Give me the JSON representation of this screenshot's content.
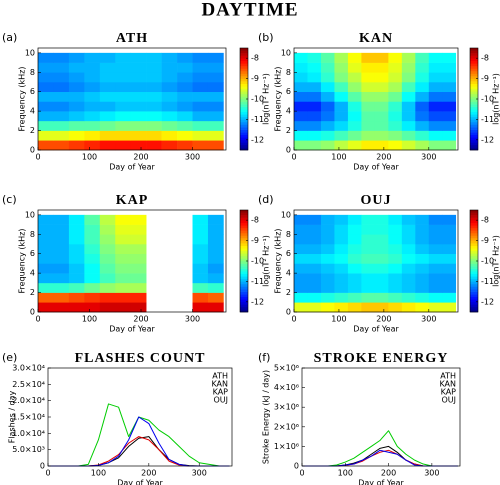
{
  "title": "DAYTIME",
  "chart_data": [
    {
      "type": "heatmap",
      "panel_label": "(a)",
      "title": "ATH",
      "xlabel": "Day of Year",
      "ylabel": "Frequency (kHz)",
      "colorbar_label": "log(nT² Hz⁻¹)",
      "x": [
        15,
        45,
        75,
        105,
        135,
        165,
        195,
        225,
        255,
        285,
        315,
        345
      ],
      "y": [
        0.5,
        1.5,
        2.5,
        3.5,
        4.5,
        5.5,
        6.5,
        7.5,
        8.5,
        9.5
      ],
      "z": [
        [
          -8.5,
          -8.5,
          -8.4,
          -8.3,
          -8.2,
          -8.2,
          -8.2,
          -8.2,
          -8.3,
          -8.4,
          -8.5,
          -8.5
        ],
        [
          -9.5,
          -9.5,
          -9.4,
          -9.3,
          -9.2,
          -9.2,
          -9.2,
          -9.2,
          -9.3,
          -9.4,
          -9.5,
          -9.5
        ],
        [
          -10.3,
          -10.3,
          -10.2,
          -10.2,
          -10.1,
          -10,
          -10,
          -10,
          -10.1,
          -10.2,
          -10.3,
          -10.3
        ],
        [
          -11,
          -11,
          -10.9,
          -10.8,
          -10.7,
          -10.6,
          -10.6,
          -10.6,
          -10.7,
          -10.8,
          -11,
          -11
        ],
        [
          -11.2,
          -11.2,
          -11.1,
          -11,
          -11,
          -10.9,
          -10.9,
          -10.9,
          -11,
          -11.1,
          -11.2,
          -11.2
        ],
        [
          -11,
          -11,
          -11,
          -10.9,
          -10.8,
          -10.8,
          -10.8,
          -10.8,
          -10.9,
          -11,
          -11,
          -11
        ],
        [
          -11.3,
          -11.3,
          -11.2,
          -11.1,
          -11,
          -11,
          -11,
          -11,
          -11.1,
          -11.2,
          -11.3,
          -11.3
        ],
        [
          -11.2,
          -11.2,
          -11.1,
          -11,
          -10.9,
          -10.9,
          -10.9,
          -10.9,
          -11,
          -11.1,
          -11.2,
          -11.2
        ],
        [
          -11.1,
          -11.1,
          -11,
          -11,
          -10.9,
          -10.9,
          -10.9,
          -10.9,
          -11,
          -11,
          -11.1,
          -11.1
        ],
        [
          -11.2,
          -11.2,
          -11.1,
          -11,
          -11,
          -10.9,
          -10.9,
          -10.9,
          -11,
          -11.1,
          -11.2,
          -11.2
        ]
      ],
      "xlim": [
        0,
        365
      ],
      "ylim": [
        0,
        10.5
      ],
      "xticks": [
        0,
        100,
        200,
        300
      ],
      "yticks": [
        0,
        2,
        4,
        6,
        8,
        10
      ],
      "clim": [
        -12.5,
        -7.5
      ],
      "cticks": [
        -8,
        -9,
        -10,
        -11,
        -12
      ]
    },
    {
      "type": "heatmap",
      "panel_label": "(b)",
      "title": "KAN",
      "xlabel": "Day of Year",
      "ylabel": "Frequency (kHz)",
      "colorbar_label": "log(nT² Hz⁻¹)",
      "x": [
        15,
        45,
        75,
        105,
        135,
        165,
        195,
        225,
        255,
        285,
        315,
        345
      ],
      "y": [
        0.5,
        1.5,
        2.5,
        3.5,
        4.5,
        5.5,
        6.5,
        7.5,
        8.5,
        9.5
      ],
      "z": [
        [
          -10,
          -10,
          -9.9,
          -9.7,
          -9.5,
          -9.3,
          -9.3,
          -9.4,
          -9.6,
          -9.8,
          -10,
          -10
        ],
        [
          -10.6,
          -10.6,
          -10.5,
          -10.3,
          -10.1,
          -9.9,
          -9.9,
          -10,
          -10.2,
          -10.4,
          -10.6,
          -10.6
        ],
        [
          -11.2,
          -11.2,
          -11,
          -10.8,
          -10.5,
          -10.2,
          -10.2,
          -10.4,
          -10.7,
          -11,
          -11.2,
          -11.2
        ],
        [
          -11.5,
          -11.5,
          -11.3,
          -11,
          -10.6,
          -10.2,
          -10.2,
          -10.5,
          -10.9,
          -11.3,
          -11.5,
          -11.5
        ],
        [
          -11.7,
          -11.7,
          -11.4,
          -11,
          -10.5,
          -10.1,
          -10.1,
          -10.4,
          -10.9,
          -11.4,
          -11.7,
          -11.7
        ],
        [
          -11.3,
          -11.3,
          -11,
          -10.6,
          -10.2,
          -9.9,
          -9.9,
          -10.1,
          -10.6,
          -11,
          -11.3,
          -11.3
        ],
        [
          -11,
          -11,
          -10.7,
          -10.3,
          -9.9,
          -9.6,
          -9.6,
          -9.8,
          -10.3,
          -10.7,
          -11,
          -11
        ],
        [
          -10.8,
          -10.7,
          -10.4,
          -10,
          -9.7,
          -9.4,
          -9.4,
          -9.6,
          -10,
          -10.5,
          -10.8,
          -10.8
        ],
        [
          -10.7,
          -10.6,
          -10.3,
          -9.9,
          -9.5,
          -9.3,
          -9.3,
          -9.5,
          -9.9,
          -10.4,
          -10.7,
          -10.7
        ],
        [
          -10.6,
          -10.5,
          -10.2,
          -9.8,
          -9.4,
          -9.1,
          -9.1,
          -9.4,
          -9.8,
          -10.3,
          -10.6,
          -10.6
        ]
      ],
      "xlim": [
        0,
        365
      ],
      "ylim": [
        0,
        10.5
      ],
      "xticks": [
        0,
        100,
        200,
        300
      ],
      "yticks": [
        0,
        2,
        4,
        6,
        8,
        10
      ],
      "clim": [
        -12.5,
        -7.5
      ],
      "cticks": [
        -8,
        -9,
        -10,
        -11,
        -12
      ]
    },
    {
      "type": "heatmap",
      "panel_label": "(c)",
      "title": "KAP",
      "xlabel": "Day of Year",
      "ylabel": "Frequency (kHz)",
      "colorbar_label": "log(nT² Hz⁻¹)",
      "x": [
        15,
        45,
        75,
        105,
        135,
        165,
        195,
        225,
        255,
        285,
        315,
        345
      ],
      "y": [
        0.5,
        1.5,
        2.5,
        3.5,
        4.5,
        5.5,
        6.5,
        7.5,
        8.5,
        9.5
      ],
      "z": [
        [
          -8,
          -8,
          -8,
          -8,
          -7.9,
          -7.9,
          -7.9,
          null,
          null,
          null,
          -8,
          -8
        ],
        [
          -8.6,
          -8.6,
          -8.5,
          -8.4,
          -8.3,
          -8.3,
          -8.3,
          null,
          null,
          null,
          -8.5,
          -8.6
        ],
        [
          -10.4,
          -10.4,
          -10.3,
          -10.1,
          -9.9,
          -9.8,
          -9.8,
          null,
          null,
          null,
          -10.3,
          -10.4
        ],
        [
          -11,
          -11,
          -10.9,
          -10.6,
          -10.3,
          -10.1,
          -10.1,
          null,
          null,
          null,
          -10.9,
          -11
        ],
        [
          -11.1,
          -11.1,
          -10.9,
          -10.6,
          -10.2,
          -10,
          -10,
          null,
          null,
          null,
          -10.9,
          -11.1
        ],
        [
          -11,
          -11,
          -10.8,
          -10.5,
          -10.1,
          -9.9,
          -9.9,
          null,
          null,
          null,
          -10.8,
          -11
        ],
        [
          -11,
          -11,
          -10.8,
          -10.4,
          -10,
          -9.8,
          -9.8,
          null,
          null,
          null,
          -10.8,
          -11
        ],
        [
          -11,
          -11,
          -10.7,
          -10.3,
          -9.9,
          -9.6,
          -9.6,
          null,
          null,
          null,
          -10.7,
          -11
        ],
        [
          -11,
          -11,
          -10.7,
          -10.3,
          -9.8,
          -9.5,
          -9.5,
          null,
          null,
          null,
          -10.7,
          -11
        ],
        [
          -11,
          -11,
          -10.7,
          -10.2,
          -9.7,
          -9.4,
          -9.4,
          null,
          null,
          null,
          -10.7,
          -11
        ]
      ],
      "xlim": [
        0,
        365
      ],
      "ylim": [
        0,
        10.5
      ],
      "xticks": [
        0,
        100,
        200,
        300
      ],
      "yticks": [
        0,
        2,
        4,
        6,
        8,
        10
      ],
      "clim": [
        -12.5,
        -7.5
      ],
      "cticks": [
        -8,
        -9,
        -10,
        -11,
        -12
      ]
    },
    {
      "type": "heatmap",
      "panel_label": "(d)",
      "title": "OUJ",
      "xlabel": "Day of Year",
      "ylabel": "Frequency (kHz)",
      "colorbar_label": "log(nT² Hz⁻¹)",
      "x": [
        15,
        45,
        75,
        105,
        135,
        165,
        195,
        225,
        255,
        285,
        315,
        345
      ],
      "y": [
        0.5,
        1.5,
        2.5,
        3.5,
        4.5,
        5.5,
        6.5,
        7.5,
        8.5,
        9.5
      ],
      "z": [
        [
          -9.5,
          -9.5,
          -9.4,
          -9.3,
          -9.2,
          -9.1,
          -9.1,
          -9.2,
          -9.3,
          -9.4,
          -9.5,
          -9.5
        ],
        [
          -10.6,
          -10.6,
          -10.5,
          -10.4,
          -10.3,
          -10.2,
          -10.2,
          -10.3,
          -10.4,
          -10.5,
          -10.6,
          -10.6
        ],
        [
          -11.1,
          -11.1,
          -11,
          -10.9,
          -10.8,
          -10.7,
          -10.7,
          -10.8,
          -10.9,
          -11,
          -11.1,
          -11.1
        ],
        [
          -11.1,
          -11.1,
          -11,
          -10.9,
          -10.8,
          -10.7,
          -10.7,
          -10.8,
          -10.9,
          -11,
          -11.1,
          -11.1
        ],
        [
          -11,
          -11,
          -10.9,
          -10.8,
          -10.6,
          -10.5,
          -10.5,
          -10.6,
          -10.8,
          -10.9,
          -11,
          -11
        ],
        [
          -10.8,
          -10.8,
          -10.7,
          -10.6,
          -10.4,
          -10.3,
          -10.3,
          -10.4,
          -10.6,
          -10.7,
          -10.8,
          -10.8
        ],
        [
          -11,
          -11,
          -10.9,
          -10.7,
          -10.5,
          -10.4,
          -10.4,
          -10.5,
          -10.7,
          -10.9,
          -11,
          -11
        ],
        [
          -11.1,
          -11.1,
          -11,
          -10.8,
          -10.6,
          -10.4,
          -10.4,
          -10.6,
          -10.8,
          -11,
          -11.1,
          -11.1
        ],
        [
          -11.1,
          -11.1,
          -11,
          -10.8,
          -10.6,
          -10.5,
          -10.5,
          -10.6,
          -10.8,
          -11,
          -11.1,
          -11.1
        ],
        [
          -11.2,
          -11.2,
          -11,
          -10.9,
          -10.7,
          -10.5,
          -10.5,
          -10.7,
          -10.9,
          -11,
          -11.2,
          -11.2
        ]
      ],
      "xlim": [
        0,
        365
      ],
      "ylim": [
        0,
        10.5
      ],
      "xticks": [
        0,
        100,
        200,
        300
      ],
      "yticks": [
        0,
        2,
        4,
        6,
        8,
        10
      ],
      "clim": [
        -12.5,
        -7.5
      ],
      "cticks": [
        -8,
        -9,
        -10,
        -11,
        -12
      ]
    },
    {
      "type": "line",
      "panel_label": "(e)",
      "title": "FLASHES COUNT",
      "xlabel": "Day of Year",
      "ylabel": "Flashes / day",
      "legend": "upper right",
      "x": [
        0,
        20,
        40,
        60,
        80,
        100,
        120,
        140,
        160,
        180,
        200,
        220,
        240,
        260,
        280,
        300,
        320,
        340,
        360
      ],
      "series": [
        {
          "name": "ATH",
          "color": "#000000",
          "values": [
            0,
            0,
            0,
            0,
            0,
            200,
            1000,
            2500,
            6000,
            8500,
            9000,
            5000,
            2000,
            500,
            100,
            0,
            0,
            0,
            0
          ]
        },
        {
          "name": "KAN",
          "color": "#e00000",
          "values": [
            0,
            0,
            0,
            0,
            0,
            300,
            1500,
            3500,
            7000,
            9000,
            8000,
            5000,
            1500,
            300,
            0,
            0,
            0,
            0,
            0
          ]
        },
        {
          "name": "KAP",
          "color": "#00cc00",
          "values": [
            0,
            0,
            0,
            0,
            500,
            8000,
            19000,
            18000,
            9000,
            15000,
            14000,
            11000,
            9000,
            6000,
            3000,
            1000,
            500,
            0,
            0
          ]
        },
        {
          "name": "OUJ",
          "color": "#0000ee",
          "values": [
            0,
            0,
            0,
            0,
            0,
            200,
            1000,
            3000,
            8000,
            15000,
            13000,
            7000,
            2000,
            500,
            0,
            0,
            0,
            0,
            0
          ]
        }
      ],
      "xlim": [
        0,
        365
      ],
      "ylim": [
        0,
        30000
      ],
      "xticks": [
        0,
        100,
        200,
        300
      ],
      "yticks": [
        0,
        {
          "value": 5000,
          "label": "5.0×10³"
        },
        {
          "value": 10000,
          "label": "1.0×10⁴"
        },
        {
          "value": 15000,
          "label": "1.5×10⁴"
        },
        {
          "value": 20000,
          "label": "2.0×10⁴"
        },
        {
          "value": 25000,
          "label": "2.5×10⁴"
        },
        {
          "value": 30000,
          "label": "3.0×10⁴"
        }
      ]
    },
    {
      "type": "line",
      "panel_label": "(f)",
      "title": "STROKE ENERGY",
      "xlabel": "Day of Year",
      "ylabel": "Stroke Energy (kJ / day)",
      "legend": "upper right",
      "x": [
        0,
        20,
        40,
        60,
        80,
        100,
        120,
        140,
        160,
        180,
        200,
        220,
        240,
        260,
        280,
        300,
        320,
        340,
        360
      ],
      "series": [
        {
          "name": "ATH",
          "color": "#000000",
          "values": [
            0,
            0,
            0,
            0,
            0,
            50000,
            150000,
            300000,
            600000,
            900000,
            1000000,
            700000,
            300000,
            100000,
            0,
            0,
            0,
            0,
            0
          ]
        },
        {
          "name": "KAN",
          "color": "#e00000",
          "values": [
            0,
            0,
            0,
            0,
            0,
            30000,
            100000,
            250000,
            500000,
            700000,
            800000,
            600000,
            300000,
            100000,
            0,
            0,
            0,
            0,
            0
          ]
        },
        {
          "name": "KAP",
          "color": "#00cc00",
          "values": [
            0,
            0,
            0,
            0,
            50000,
            200000,
            400000,
            700000,
            1000000,
            1300000,
            1800000,
            1000000,
            600000,
            300000,
            100000,
            0,
            0,
            0,
            0
          ]
        },
        {
          "name": "OUJ",
          "color": "#0000ee",
          "values": [
            0,
            0,
            0,
            0,
            0,
            50000,
            100000,
            300000,
            500000,
            800000,
            700000,
            600000,
            300000,
            50000,
            0,
            0,
            0,
            0,
            0
          ]
        }
      ],
      "xlim": [
        0,
        365
      ],
      "ylim": [
        0,
        5000000
      ],
      "xticks": [
        0,
        100,
        200,
        300
      ],
      "yticks": [
        0,
        {
          "value": 1000000,
          "label": "1×10⁶"
        },
        {
          "value": 2000000,
          "label": "2×10⁶"
        },
        {
          "value": 3000000,
          "label": "3×10⁶"
        },
        {
          "value": 4000000,
          "label": "4×10⁶"
        },
        {
          "value": 5000000,
          "label": "5×10⁶"
        }
      ]
    }
  ]
}
